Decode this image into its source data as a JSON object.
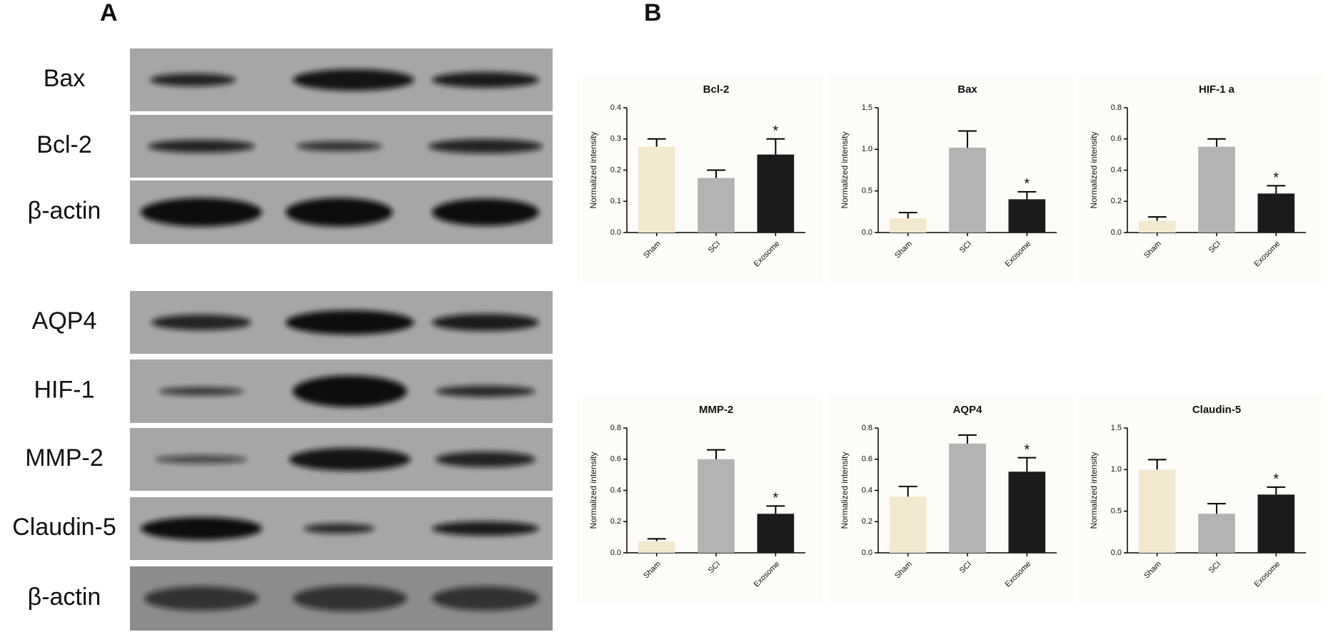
{
  "panels": [
    "A",
    "B"
  ],
  "blots": {
    "labels": [
      "Bax",
      "Bcl-2",
      "β-actin",
      "AQP4",
      "HIF-1",
      "MMP-2",
      "Claudin-5",
      "β-actin"
    ]
  },
  "chart_data": [
    {
      "type": "bar",
      "title": "Bcl-2",
      "y_label": "Normalized intensity",
      "categories": [
        "Sham",
        "SCI",
        "Exosome"
      ],
      "values": [
        0.275,
        0.175,
        0.25
      ],
      "errors": [
        0.025,
        0.025,
        0.05
      ],
      "colors": [
        "#f1e8cf",
        "#b3b3b3",
        "#1b1b1b"
      ],
      "significance": [
        null,
        null,
        "*"
      ],
      "ylim": [
        0,
        0.4
      ],
      "yticks": [
        {
          "value": 0,
          "label": "0.0"
        },
        0.1,
        0.2,
        0.3,
        0.4
      ]
    },
    {
      "type": "bar",
      "title": "Bax",
      "y_label": "Normalized intensity",
      "categories": [
        "Sham",
        "SCI",
        "Exosome"
      ],
      "values": [
        0.17,
        1.02,
        0.4
      ],
      "errors": [
        0.07,
        0.2,
        0.09
      ],
      "colors": [
        "#f1e8cf",
        "#b3b3b3",
        "#1b1b1b"
      ],
      "significance": [
        null,
        null,
        "*"
      ],
      "ylim": [
        0,
        1.5
      ],
      "yticks": [
        {
          "value": 0,
          "label": "0.0"
        },
        0.5,
        {
          "value": 1,
          "label": "1.0"
        },
        1.5
      ]
    },
    {
      "type": "bar",
      "title": "HIF-1 a",
      "y_label": "Normalized intensity",
      "categories": [
        "Sham",
        "SCI",
        "Exosome"
      ],
      "values": [
        0.075,
        0.55,
        0.25
      ],
      "errors": [
        0.025,
        0.05,
        0.05
      ],
      "colors": [
        "#f1e8cf",
        "#b3b3b3",
        "#1b1b1b"
      ],
      "significance": [
        null,
        null,
        "*"
      ],
      "ylim": [
        0,
        0.8
      ],
      "yticks": [
        {
          "value": 0,
          "label": "0.0"
        },
        0.2,
        0.4,
        0.6,
        0.8
      ]
    },
    {
      "type": "bar",
      "title": "MMP-2",
      "y_label": "Normalized intensity",
      "categories": [
        "Sham",
        "SCI",
        "Exosome"
      ],
      "values": [
        0.075,
        0.6,
        0.25
      ],
      "errors": [
        0.015,
        0.06,
        0.05
      ],
      "colors": [
        "#f1e8cf",
        "#b3b3b3",
        "#1b1b1b"
      ],
      "significance": [
        null,
        null,
        "*"
      ],
      "ylim": [
        0,
        0.8
      ],
      "yticks": [
        {
          "value": 0,
          "label": "0.0"
        },
        0.2,
        0.4,
        0.6,
        0.8
      ]
    },
    {
      "type": "bar",
      "title": "AQP4",
      "y_label": "Normalized intensity",
      "categories": [
        "Sham",
        "SCI",
        "Exosome"
      ],
      "values": [
        0.36,
        0.7,
        0.52
      ],
      "errors": [
        0.065,
        0.055,
        0.09
      ],
      "colors": [
        "#f1e8cf",
        "#b3b3b3",
        "#1b1b1b"
      ],
      "significance": [
        null,
        null,
        "*"
      ],
      "ylim": [
        0,
        0.8
      ],
      "yticks": [
        {
          "value": 0,
          "label": "0.0"
        },
        0.2,
        0.4,
        0.6,
        0.8
      ]
    },
    {
      "type": "bar",
      "title": "Claudin-5",
      "y_label": "Normalized intensity",
      "categories": [
        "Sham",
        "SCI",
        "Exosome"
      ],
      "values": [
        1.0,
        0.47,
        0.7
      ],
      "errors": [
        0.12,
        0.12,
        0.09
      ],
      "colors": [
        "#f1e8cf",
        "#b3b3b3",
        "#1b1b1b"
      ],
      "significance": [
        null,
        null,
        "*"
      ],
      "ylim": [
        0,
        1.5
      ],
      "yticks": [
        {
          "value": 0,
          "label": "0.0"
        },
        0.5,
        {
          "value": 1,
          "label": "1.0"
        },
        1.5
      ]
    }
  ]
}
